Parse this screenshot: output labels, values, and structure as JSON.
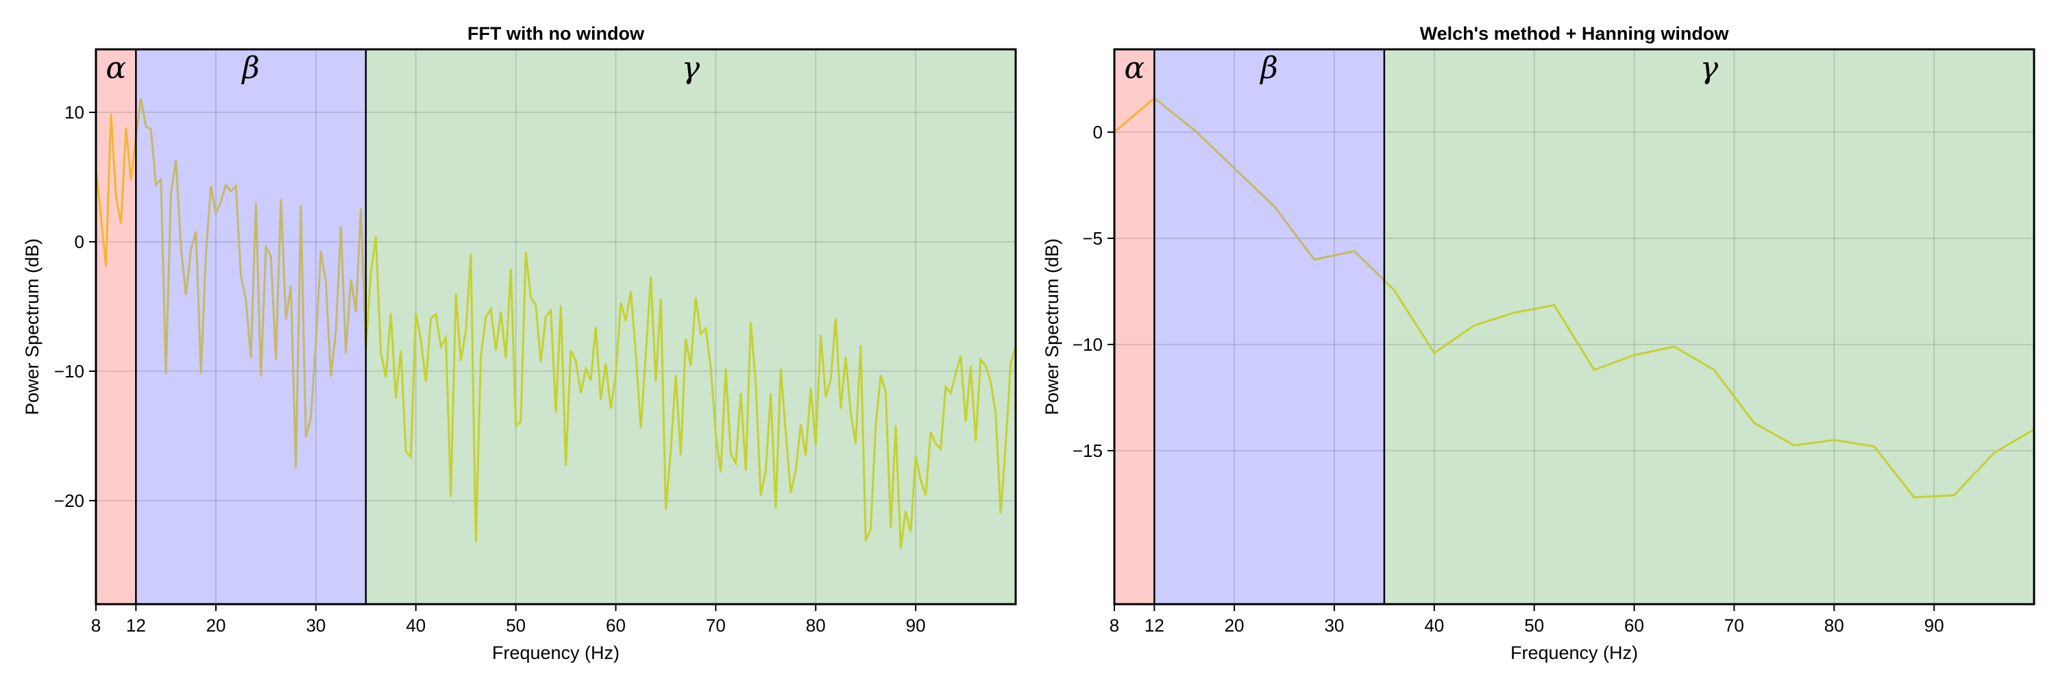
{
  "figure": {
    "panels": [
      {
        "id": "fft",
        "title": "FFT with no window",
        "xlabel": "Frequency (Hz)",
        "ylabel": "Power Spectrum (dB)",
        "xticks": [
          8,
          12,
          20,
          30,
          40,
          50,
          60,
          70,
          80,
          90
        ],
        "yticks": [
          10,
          0,
          -10,
          -20
        ],
        "ytick_labels": [
          "10",
          "0",
          "−10",
          "−20"
        ],
        "xlim": [
          8,
          100
        ],
        "ylim": [
          -28,
          14.87
        ]
      },
      {
        "id": "welch",
        "title": "Welch's method + Hanning window",
        "xlabel": "Frequency (Hz)",
        "ylabel": "Power Spectrum (dB)",
        "xticks": [
          8,
          12,
          20,
          30,
          40,
          50,
          60,
          70,
          80,
          90
        ],
        "yticks": [
          0,
          -5,
          -10,
          -15
        ],
        "ytick_labels": [
          "0",
          "−5",
          "−10",
          "−15"
        ],
        "xlim": [
          8,
          100
        ],
        "ylim": [
          -22.23,
          3.9
        ]
      }
    ],
    "bands": [
      {
        "name": "alpha",
        "symbol": "α",
        "from": 8,
        "to": 12,
        "fill": "#ffcccc",
        "line_color": "#f2b733"
      },
      {
        "name": "beta",
        "symbol": "β",
        "from": 12,
        "to": 35,
        "fill": "#ccccff",
        "line_color": "#c5b966"
      },
      {
        "name": "gamma",
        "symbol": "γ",
        "from": 35,
        "to": 100,
        "fill": "#cde5cd",
        "line_color": "#c5d12f"
      }
    ]
  },
  "chart_data": [
    {
      "type": "line",
      "title": "FFT with no window",
      "xlabel": "Frequency (Hz)",
      "ylabel": "Power Spectrum (dB)",
      "xlim": [
        8,
        100
      ],
      "ylim": [
        -28,
        14.87
      ],
      "grid": true,
      "band_annotations": [
        "α (8-12 Hz)",
        "β (12-35 Hz)",
        "γ (35-100 Hz)"
      ],
      "x_start": 8,
      "x_step": 0.5,
      "values": [
        5.6,
        2.0,
        -1.9,
        9.9,
        3.5,
        1.4,
        8.8,
        4.8,
        8.1,
        11.1,
        8.9,
        8.7,
        4.4,
        4.8,
        -10.2,
        3.7,
        6.3,
        -0.4,
        -4.1,
        -0.6,
        0.8,
        -10.2,
        -0.9,
        4.3,
        2.2,
        3.1,
        4.4,
        3.9,
        4.3,
        -2.6,
        -4.5,
        -9.0,
        3.0,
        -10.4,
        -0.4,
        -1.1,
        -9.1,
        3.3,
        -6.0,
        -3.4,
        -17.5,
        2.8,
        -15.1,
        -13.6,
        -7.8,
        -0.7,
        -3.1,
        -10.4,
        -6.9,
        1.2,
        -8.6,
        -2.9,
        -5.4,
        2.6,
        -8.3,
        -2.4,
        0.4,
        -8.6,
        -10.5,
        -5.5,
        -12.1,
        -8.4,
        -16.2,
        -16.6,
        -5.5,
        -7.6,
        -10.8,
        -5.9,
        -5.6,
        -8.1,
        -7.4,
        -19.7,
        -4.0,
        -9.2,
        -6.9,
        -0.9,
        -23.2,
        -8.9,
        -5.8,
        -5.2,
        -8.4,
        -5.4,
        -9.0,
        -2.1,
        -14.2,
        -13.9,
        -0.8,
        -4.3,
        -4.9,
        -9.3,
        -5.8,
        -5.3,
        -13.2,
        -4.9,
        -17.3,
        -8.4,
        -9.2,
        -11.7,
        -9.8,
        -10.7,
        -6.6,
        -12.2,
        -9.4,
        -12.9,
        -10.3,
        -4.7,
        -6.1,
        -3.8,
        -8.6,
        -14.4,
        -8.7,
        -2.7,
        -10.8,
        -4.4,
        -20.7,
        -16.1,
        -10.3,
        -16.5,
        -7.5,
        -9.6,
        -4.3,
        -7.1,
        -6.7,
        -9.7,
        -14.9,
        -17.8,
        -9.8,
        -16.4,
        -17.1,
        -11.7,
        -17.7,
        -6.2,
        -10.9,
        -19.6,
        -17.7,
        -11.7,
        -20.6,
        -9.8,
        -14.7,
        -19.4,
        -17.7,
        -14.1,
        -16.5,
        -11.3,
        -15.7,
        -7.2,
        -12.0,
        -10.7,
        -5.9,
        -12.9,
        -8.9,
        -13.2,
        -15.6,
        -8.0,
        -23.1,
        -22.2,
        -14.2,
        -10.3,
        -11.6,
        -22.1,
        -14.2,
        -23.7,
        -20.8,
        -22.4,
        -16.6,
        -18.4,
        -19.6,
        -14.7,
        -15.6,
        -16.0,
        -11.2,
        -11.7,
        -10.2,
        -8.8,
        -13.9,
        -9.6,
        -15.4,
        -9.1,
        -9.6,
        -10.8,
        -13.2,
        -21.0,
        -15.7,
        -9.4,
        -8.1
      ]
    },
    {
      "type": "line",
      "title": "Welch's method + Hanning window",
      "xlabel": "Frequency (Hz)",
      "ylabel": "Power Spectrum (dB)",
      "xlim": [
        8,
        100
      ],
      "ylim": [
        -22.23,
        3.9
      ],
      "grid": true,
      "band_annotations": [
        "α (8-12 Hz)",
        "β (12-35 Hz)",
        "γ (35-100 Hz)"
      ],
      "x": [
        8,
        12,
        16,
        20,
        24,
        28,
        32,
        36,
        40,
        44,
        48,
        52,
        56,
        60,
        64,
        68,
        72,
        76,
        80,
        84,
        88,
        92,
        96,
        100
      ],
      "values": [
        0.0,
        1.6,
        0.1,
        -1.7,
        -3.5,
        -6.0,
        -5.6,
        -7.45,
        -10.4,
        -9.1,
        -8.5,
        -8.15,
        -11.2,
        -10.5,
        -10.1,
        -11.2,
        -13.7,
        -14.75,
        -14.5,
        -14.8,
        -17.2,
        -17.1,
        -15.1,
        -14.0
      ]
    }
  ]
}
